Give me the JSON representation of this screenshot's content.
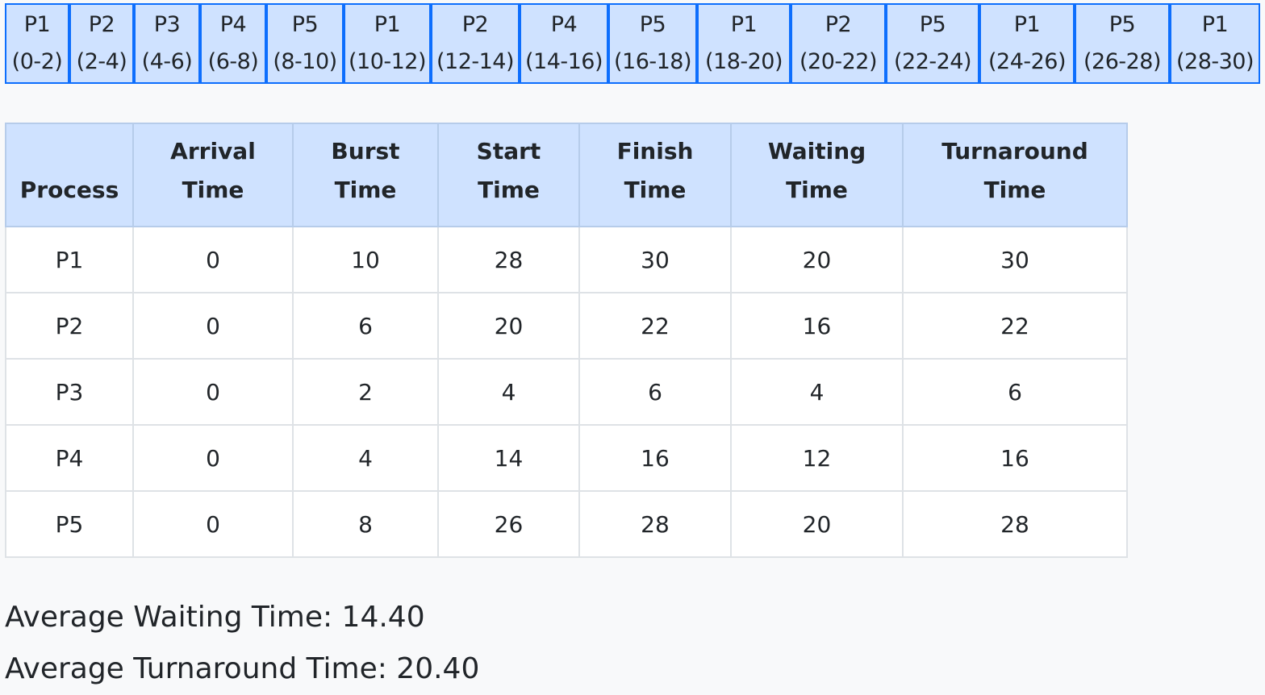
{
  "gantt": [
    {
      "process": "P1",
      "range": "(0-2)"
    },
    {
      "process": "P2",
      "range": "(2-4)"
    },
    {
      "process": "P3",
      "range": "(4-6)"
    },
    {
      "process": "P4",
      "range": "(6-8)"
    },
    {
      "process": "P5",
      "range": "(8-10)"
    },
    {
      "process": "P1",
      "range": "(10-12)"
    },
    {
      "process": "P2",
      "range": "(12-14)"
    },
    {
      "process": "P4",
      "range": "(14-16)"
    },
    {
      "process": "P5",
      "range": "(16-18)"
    },
    {
      "process": "P1",
      "range": "(18-20)"
    },
    {
      "process": "P2",
      "range": "(20-22)"
    },
    {
      "process": "P5",
      "range": "(22-24)"
    },
    {
      "process": "P1",
      "range": "(24-26)"
    },
    {
      "process": "P5",
      "range": "(26-28)"
    },
    {
      "process": "P1",
      "range": "(28-30)"
    }
  ],
  "table": {
    "headers": [
      [
        "Process"
      ],
      [
        "Arrival",
        "Time"
      ],
      [
        "Burst",
        "Time"
      ],
      [
        "Start",
        "Time"
      ],
      [
        "Finish",
        "Time"
      ],
      [
        "Waiting",
        "Time"
      ],
      [
        "Turnaround",
        "Time"
      ]
    ],
    "rows": [
      [
        "P1",
        "0",
        "10",
        "28",
        "30",
        "20",
        "30"
      ],
      [
        "P2",
        "0",
        "6",
        "20",
        "22",
        "16",
        "22"
      ],
      [
        "P3",
        "0",
        "2",
        "4",
        "6",
        "4",
        "6"
      ],
      [
        "P4",
        "0",
        "4",
        "14",
        "16",
        "12",
        "16"
      ],
      [
        "P5",
        "0",
        "8",
        "26",
        "28",
        "20",
        "28"
      ]
    ]
  },
  "summary": {
    "avg_waiting": "Average Waiting Time: 14.40",
    "avg_turnaround": "Average Turnaround Time: 20.40"
  },
  "colors": {
    "block_bg": "#cfe2ff",
    "block_border": "#0d6efd",
    "header_bg": "#cfe2ff"
  }
}
